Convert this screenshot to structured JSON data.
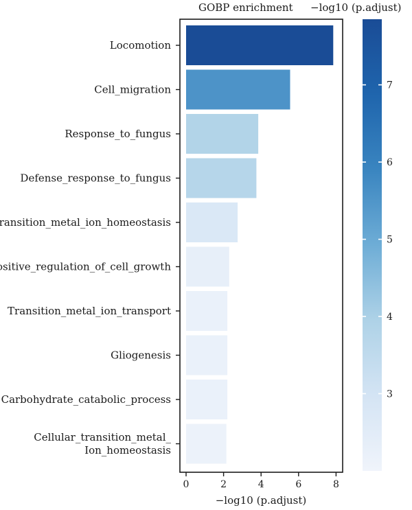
{
  "chart_data": {
    "type": "bar",
    "orientation": "horizontal",
    "title": "GOBP enrichment",
    "xlabel": "−log10 (p.adjust)",
    "xlim": [
      0,
      8.4
    ],
    "xticks": [
      0,
      2,
      4,
      6,
      8
    ],
    "categories": [
      [
        "Locomotion"
      ],
      [
        "Cell_migration"
      ],
      [
        "Response_to_fungus"
      ],
      [
        "Defense_response_to_fungus"
      ],
      [
        "Transition_metal_ion_homeostasis"
      ],
      [
        "Positive_regulation_of_cell_growth"
      ],
      [
        "Transition_metal_ion_transport"
      ],
      [
        "Gliogenesis"
      ],
      [
        "Carbohydrate_catabolic_process"
      ],
      [
        "Cellular_transition_metal_",
        "Ion_homeostasis"
      ]
    ],
    "values": [
      7.85,
      5.55,
      3.85,
      3.75,
      2.75,
      2.3,
      2.2,
      2.2,
      2.2,
      2.15
    ],
    "colorbar": {
      "label": "−log10 (p.adjust)",
      "min": 2.0,
      "max": 7.85,
      "ticks": [
        3,
        4,
        5,
        6,
        7
      ],
      "colormap": [
        "#f0f4fb",
        "#d4e4f4",
        "#aed2e7",
        "#6eadd6",
        "#3a85c0",
        "#1f65ad",
        "#1a4c96"
      ]
    },
    "grid": false,
    "legend": "right"
  }
}
